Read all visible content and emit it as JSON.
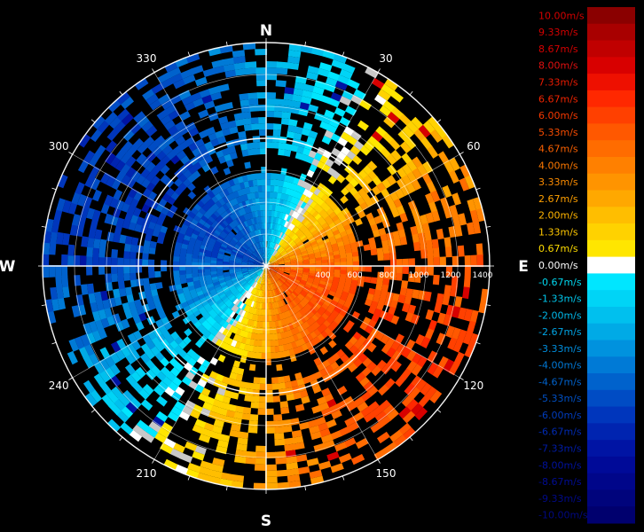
{
  "chart_data": {
    "type": "heatmap",
    "projection": "polar (PPI radial wind velocity)",
    "compass": {
      "north": "N",
      "east": "E",
      "south": "S",
      "west": "W"
    },
    "azimuth_labels": [
      "30",
      "60",
      "120",
      "150",
      "210",
      "240",
      "300",
      "330"
    ],
    "range_labels": [
      "400",
      "600",
      "800",
      "1000",
      "1200",
      "1400"
    ],
    "velocity_unit": "m/s",
    "color_scale": [
      {
        "label": "10.00m/s",
        "value": 10.0,
        "color": "#8a0000",
        "text_color": "#d40000"
      },
      {
        "label": "9.33m/s",
        "value": 9.33,
        "color": "#a80000",
        "text_color": "#d40000"
      },
      {
        "label": "8.67m/s",
        "value": 8.67,
        "color": "#c00000",
        "text_color": "#d40000"
      },
      {
        "label": "8.00m/s",
        "value": 8.0,
        "color": "#d80000",
        "text_color": "#e01010"
      },
      {
        "label": "7.33m/s",
        "value": 7.33,
        "color": "#ee1000",
        "text_color": "#e81a00"
      },
      {
        "label": "6.67m/s",
        "value": 6.67,
        "color": "#ff2800",
        "text_color": "#f02400"
      },
      {
        "label": "6.00m/s",
        "value": 6.0,
        "color": "#ff4000",
        "text_color": "#f53800"
      },
      {
        "label": "5.33m/s",
        "value": 5.33,
        "color": "#ff5800",
        "text_color": "#f84c00"
      },
      {
        "label": "4.67m/s",
        "value": 4.67,
        "color": "#ff6c00",
        "text_color": "#fa6000"
      },
      {
        "label": "4.00m/s",
        "value": 4.0,
        "color": "#ff8000",
        "text_color": "#fc7800"
      },
      {
        "label": "3.33m/s",
        "value": 3.33,
        "color": "#ff9400",
        "text_color": "#fd8c00"
      },
      {
        "label": "2.67m/s",
        "value": 2.67,
        "color": "#ffa800",
        "text_color": "#ffa000"
      },
      {
        "label": "2.00m/s",
        "value": 2.0,
        "color": "#ffbe00",
        "text_color": "#ffb400"
      },
      {
        "label": "1.33m/s",
        "value": 1.33,
        "color": "#ffd200",
        "text_color": "#ffc800"
      },
      {
        "label": "0.67m/s",
        "value": 0.67,
        "color": "#ffe600",
        "text_color": "#ffdc00"
      },
      {
        "label": "0.00m/s",
        "value": 0.0,
        "color": "#ffffff",
        "text_color": "#ffffff"
      },
      {
        "label": "-0.67m/s",
        "value": -0.67,
        "color": "#00e6ff",
        "text_color": "#00d8f0"
      },
      {
        "label": "-1.33m/s",
        "value": -1.33,
        "color": "#00d4f6",
        "text_color": "#00c8ee"
      },
      {
        "label": "-2.00m/s",
        "value": -2.0,
        "color": "#00c0ee",
        "text_color": "#00b8ea"
      },
      {
        "label": "-2.67m/s",
        "value": -2.67,
        "color": "#00aae6",
        "text_color": "#00a4e4"
      },
      {
        "label": "-3.33m/s",
        "value": -3.33,
        "color": "#0092de",
        "text_color": "#008ede"
      },
      {
        "label": "-4.00m/s",
        "value": -4.0,
        "color": "#007ad6",
        "text_color": "#0078d6"
      },
      {
        "label": "-4.67m/s",
        "value": -4.67,
        "color": "#0062cc",
        "text_color": "#0062cc"
      },
      {
        "label": "-5.33m/s",
        "value": -5.33,
        "color": "#004cc4",
        "text_color": "#0050c4"
      },
      {
        "label": "-6.00m/s",
        "value": -6.0,
        "color": "#0036bc",
        "text_color": "#003cbc"
      },
      {
        "label": "-6.67m/s",
        "value": -6.67,
        "color": "#0024b0",
        "text_color": "#002ab2"
      },
      {
        "label": "-7.33m/s",
        "value": -7.33,
        "color": "#0014a4",
        "text_color": "#001ca8"
      },
      {
        "label": "-8.00m/s",
        "value": -8.0,
        "color": "#000a98",
        "text_color": "#00129e"
      },
      {
        "label": "-8.67m/s",
        "value": -8.67,
        "color": "#00068a",
        "text_color": "#000c94"
      },
      {
        "label": "-9.33m/s",
        "value": -9.33,
        "color": "#00047c",
        "text_color": "#000a88"
      },
      {
        "label": "-10.00m/s",
        "value": -10.0,
        "color": "#00006e",
        "text_color": "#000880"
      }
    ],
    "grid": true,
    "legend_position": "right"
  }
}
